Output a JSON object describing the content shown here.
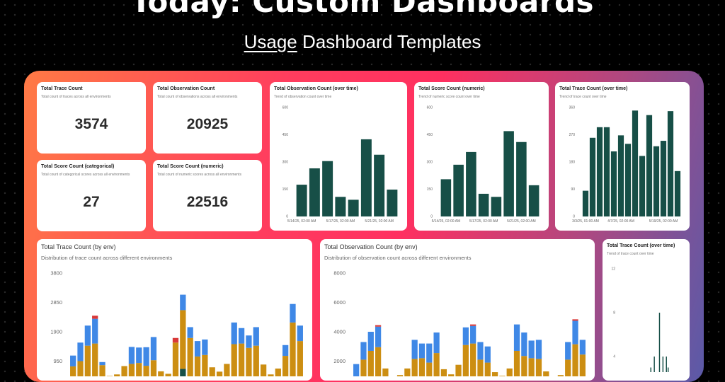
{
  "hero": {
    "title": "Today: Custom Dashboards",
    "sub_underlined": "Usage",
    "sub_rest": " Dashboard Templates"
  },
  "colors": {
    "dark_green": "#174f47",
    "gold": "#cc8e12",
    "blue": "#3f88e6",
    "red": "#d93838"
  },
  "kpis": [
    {
      "title": "Total Trace Count",
      "desc": "Total count of traces across all environments",
      "value": "3574"
    },
    {
      "title": "Total Observation Count",
      "desc": "Total count of observations across all environments",
      "value": "20925"
    },
    {
      "title": "Total Score Count (categorical)",
      "desc": "Total count of categorical scores across all environments",
      "value": "27"
    },
    {
      "title": "Total Score Count (numeric)",
      "desc": "Total count of numeric scores across all environments",
      "value": "22516"
    }
  ],
  "chart_data": [
    {
      "type": "bar",
      "title": "Total Observation Count (over time)",
      "subtitle": "Trend of observation count over time",
      "yticks": [
        0,
        150,
        300,
        450,
        600
      ],
      "ylim": [
        0,
        600
      ],
      "xticks": [
        "5/14/25, 02:00 AM",
        "5/17/25, 02:00 AM",
        "5/21/25, 02:00 AM"
      ],
      "values": [
        175,
        265,
        305,
        108,
        92,
        425,
        340,
        148
      ]
    },
    {
      "type": "bar",
      "title": "Total Score Count (numeric)",
      "subtitle": "Trend of numeric score count over time",
      "yticks": [
        0,
        150,
        300,
        450,
        600
      ],
      "ylim": [
        0,
        600
      ],
      "xticks": [
        "5/14/25, 02:00 AM",
        "5/17/25, 02:00 AM",
        "5/21/25, 02:00 AM"
      ],
      "values": [
        205,
        285,
        355,
        125,
        108,
        470,
        410,
        172
      ]
    },
    {
      "type": "bar",
      "title": "Total Trace Count (over time)",
      "subtitle": "Trend of trace count over time",
      "yticks": [
        0,
        90,
        180,
        270,
        360
      ],
      "ylim": [
        0,
        360
      ],
      "xticks": [
        "3/3/25, 01:00 AM",
        "4/7/25, 02:00 AM",
        "5/19/25, 02:00 AM"
      ],
      "values": [
        85,
        260,
        295,
        295,
        215,
        268,
        240,
        350,
        200,
        335,
        232,
        250,
        348,
        150
      ]
    },
    {
      "type": "stacked-bar",
      "title": "Total Trace Count (by env)",
      "subtitle": "Distribution of trace count across different environments",
      "yticks": [
        950,
        1900,
        2850,
        3800
      ],
      "ylim": [
        0,
        3800
      ],
      "series": [
        {
          "values": [
            180,
            150,
            250,
            220,
            120,
            90,
            100,
            140,
            160,
            190,
            150,
            180,
            120,
            90,
            250,
            700,
            300,
            200,
            250,
            150,
            110,
            160,
            200,
            220,
            180,
            150,
            140,
            120,
            160,
            170,
            400,
            300
          ]
        },
        {
          "values": [
            600,
            800,
            1200,
            1300,
            700,
            380,
            420,
            650,
            700,
            700,
            650,
            800,
            500,
            450,
            1300,
            1900,
            1400,
            900,
            900,
            600,
            500,
            700,
            1300,
            1300,
            1200,
            1300,
            700,
            400,
            550,
            950,
            1800,
            1300
          ]
        },
        {
          "values": [
            350,
            600,
            650,
            800,
            100,
            0,
            0,
            0,
            550,
            500,
            600,
            750,
            0,
            0,
            0,
            500,
            350,
            500,
            500,
            0,
            0,
            0,
            700,
            500,
            400,
            600,
            0,
            0,
            0,
            350,
            600,
            500
          ]
        },
        {
          "values": [
            0,
            0,
            0,
            100,
            0,
            0,
            0,
            0,
            0,
            0,
            0,
            0,
            0,
            0,
            150,
            0,
            0,
            0,
            0,
            0,
            0,
            0,
            0,
            0,
            0,
            0,
            0,
            0,
            0,
            0,
            0,
            0
          ]
        }
      ]
    },
    {
      "type": "stacked-bar",
      "title": "Total Observation Count (by env)",
      "subtitle": "Distribution of observation count across different environments",
      "yticks": [
        2000,
        4000,
        6000,
        8000
      ],
      "ylim": [
        0,
        8000
      ],
      "series": [
        {
          "values": [
            200,
            300,
            500,
            350,
            300,
            150,
            250,
            300,
            350,
            400,
            300,
            350,
            250,
            200,
            350,
            500,
            400,
            300,
            300,
            250,
            200,
            300,
            400,
            350,
            300,
            350,
            300,
            200,
            250,
            300,
            450,
            350
          ]
        },
        {
          "values": [
            600,
            1800,
            2200,
            2600,
            1200,
            600,
            800,
            1200,
            1800,
            1800,
            1600,
            2200,
            1200,
            900,
            1400,
            2600,
            2800,
            1800,
            1600,
            1000,
            800,
            1200,
            2300,
            2000,
            1900,
            1800,
            1000,
            600,
            800,
            1800,
            2700,
            2100
          ]
        },
        {
          "values": [
            1000,
            1200,
            1300,
            1400,
            0,
            0,
            0,
            0,
            1300,
            1000,
            1300,
            1400,
            0,
            0,
            0,
            1200,
            1200,
            1200,
            1100,
            0,
            0,
            0,
            1800,
            1600,
            1200,
            1300,
            0,
            0,
            0,
            1200,
            1600,
            1000
          ]
        },
        {
          "values": [
            0,
            0,
            0,
            100,
            0,
            0,
            0,
            0,
            0,
            0,
            0,
            0,
            0,
            0,
            0,
            0,
            100,
            0,
            0,
            0,
            0,
            0,
            0,
            0,
            0,
            0,
            0,
            0,
            0,
            0,
            100,
            0
          ]
        }
      ]
    },
    {
      "type": "bar",
      "title": "Total Trace Count (over time)",
      "subtitle": "Trend of trace count over time",
      "yticks": [
        0,
        4,
        8,
        12
      ],
      "ylim": [
        0,
        12
      ],
      "values": [
        0,
        0,
        0,
        0,
        0,
        0,
        0,
        0,
        0,
        0,
        0,
        0,
        0,
        1,
        0,
        2,
        3,
        2,
        4,
        2,
        1,
        8,
        2,
        4,
        1,
        4,
        3,
        1,
        0,
        0,
        2,
        1,
        0,
        0
      ]
    }
  ]
}
